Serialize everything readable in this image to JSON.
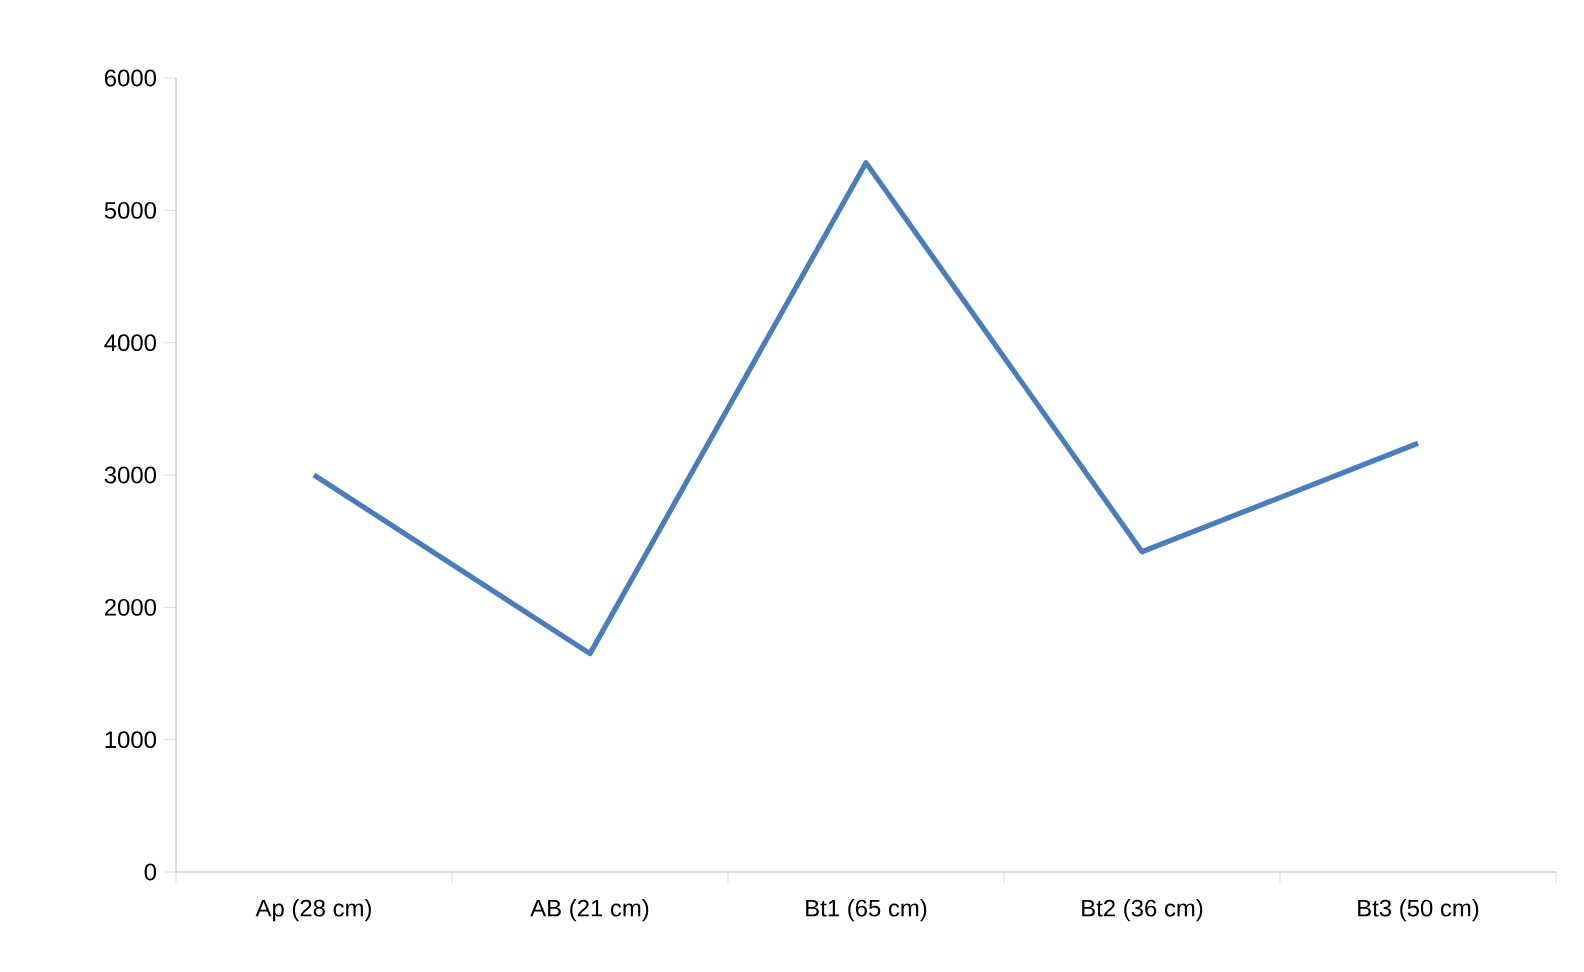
{
  "chart_data": {
    "type": "line",
    "categories": [
      "Ap (28 cm)",
      "AB (21 cm)",
      "Bt1 (65 cm)",
      "Bt2 (36 cm)",
      "Bt3 (50 cm)"
    ],
    "values": [
      3000,
      1650,
      5360,
      2420,
      3240
    ],
    "color": "#4a7ebb",
    "ylim": [
      0,
      6000
    ],
    "yticks": [
      0,
      1000,
      2000,
      3000,
      4000,
      5000,
      6000
    ],
    "grid": false,
    "marker": "none",
    "line_style": "solid"
  }
}
